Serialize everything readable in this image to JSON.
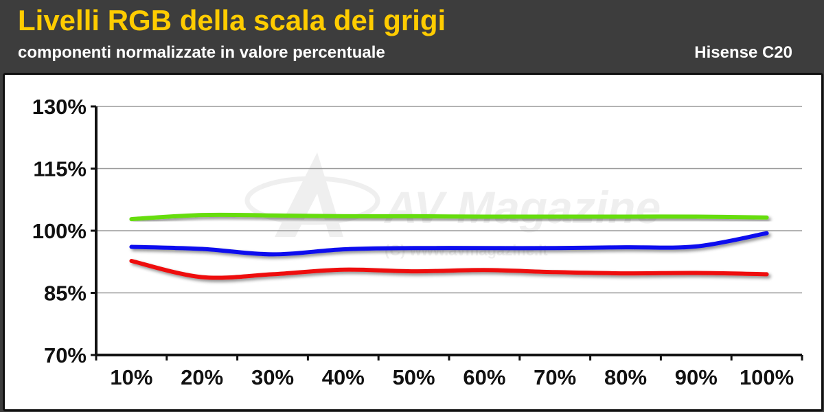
{
  "header": {
    "title": "Livelli RGB della scala dei grigi",
    "subtitle": "componenti normalizzate in valore percentuale",
    "model": "Hisense C20"
  },
  "watermark": {
    "brand": "AV Magazine",
    "copyright": "(C) www.avmagazine.it"
  },
  "chart_data": {
    "type": "line",
    "categories": [
      "10%",
      "20%",
      "30%",
      "40%",
      "50%",
      "60%",
      "70%",
      "80%",
      "90%",
      "100%"
    ],
    "y_ticks": [
      "70%",
      "85%",
      "100%",
      "115%",
      "130%"
    ],
    "ylim": [
      70,
      130
    ],
    "grid": true,
    "series": [
      {
        "color": "#66dd11",
        "values": [
          102.8,
          103.8,
          103.7,
          103.5,
          103.5,
          103.4,
          103.4,
          103.4,
          103.4,
          103.2
        ]
      },
      {
        "color": "#1111ee",
        "values": [
          96.1,
          95.6,
          94.3,
          95.5,
          95.8,
          95.8,
          95.8,
          96.0,
          96.2,
          99.4
        ]
      },
      {
        "color": "#ee1111",
        "values": [
          92.7,
          88.8,
          89.5,
          90.6,
          90.2,
          90.5,
          90.0,
          89.7,
          89.8,
          89.5
        ]
      }
    ]
  }
}
